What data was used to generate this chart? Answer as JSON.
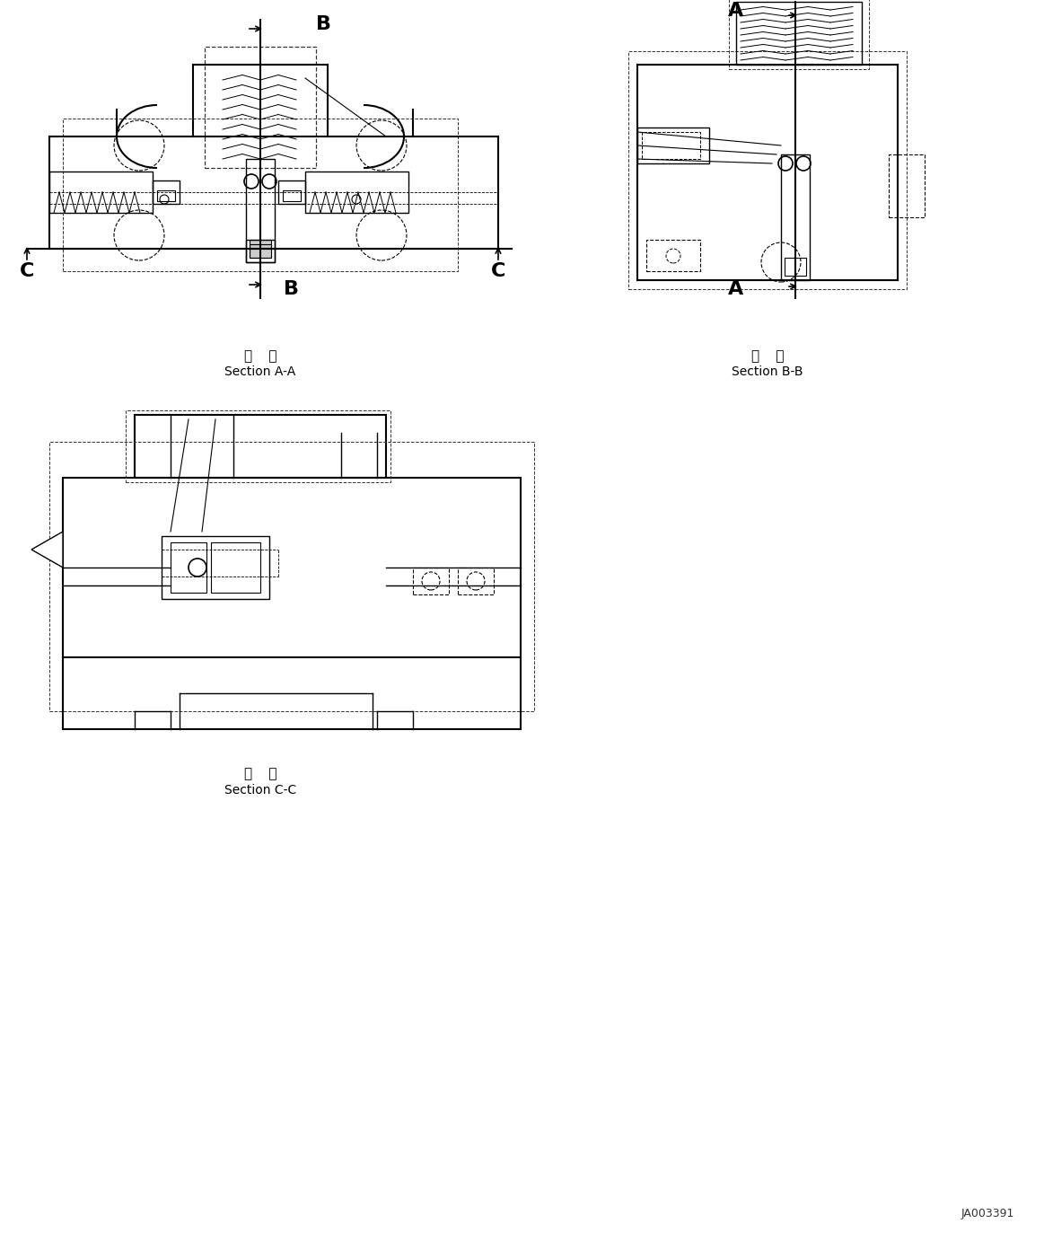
{
  "bg_color": "#ffffff",
  "line_color": "#000000",
  "dashed_color": "#555555",
  "fig_width": 11.63,
  "fig_height": 13.82,
  "section_aa_label": "断  面\nSection A-A",
  "section_bb_label": "断  面\nSection B-B",
  "section_cc_label": "断  面\nSection C-C",
  "ref_code": "JA003391"
}
